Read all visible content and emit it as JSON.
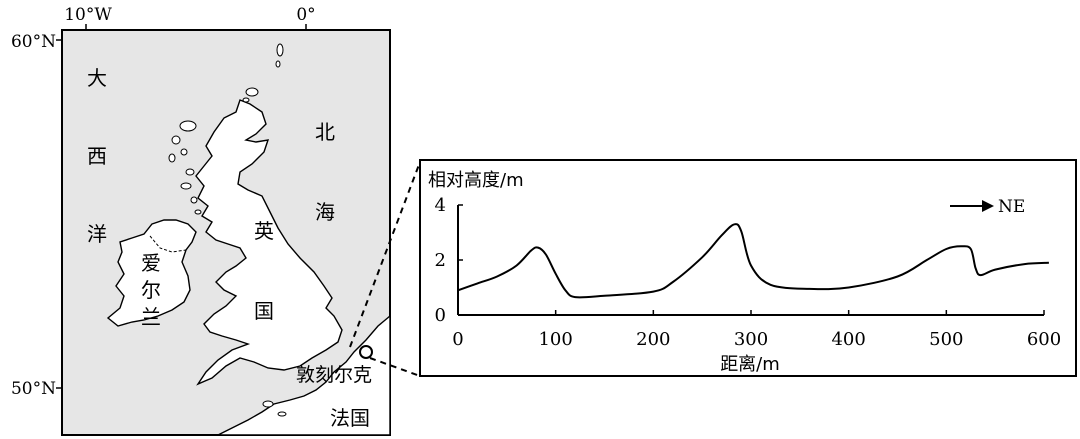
{
  "map": {
    "lon_labels": [
      "10°W",
      "0°"
    ],
    "lat_labels": [
      "60°N",
      "50°N"
    ],
    "sea_labels": {
      "atlantic": [
        "大",
        "西",
        "洋"
      ],
      "north_sea": [
        "北",
        "海"
      ]
    },
    "country_labels": {
      "uk": [
        "英",
        "国"
      ],
      "ireland": [
        "爱",
        "尔",
        "兰"
      ],
      "france": "法国"
    },
    "place_label": "敦刻尔克",
    "colors": {
      "sea": "#e6e6e6",
      "land": "#ffffff",
      "outline": "#000000"
    }
  },
  "chart_data": {
    "type": "line",
    "ylabel": "相对高度/m",
    "xlabel": "距离/m",
    "direction_label": "NE",
    "xlim": [
      0,
      600
    ],
    "ylim": [
      0,
      4
    ],
    "x_ticks": [
      "0",
      "100",
      "200",
      "300",
      "400",
      "500",
      "600"
    ],
    "y_ticks": [
      "0",
      "2",
      "4"
    ],
    "series": [
      {
        "x": [
          0,
          20,
          40,
          60,
          75,
          82,
          90,
          100,
          110,
          120,
          150,
          200,
          220,
          250,
          270,
          283,
          290,
          300,
          320,
          360,
          400,
          450,
          480,
          500,
          515,
          525,
          530,
          535,
          550,
          580,
          605
        ],
        "y": [
          0.9,
          1.15,
          1.4,
          1.8,
          2.35,
          2.45,
          2.2,
          1.5,
          0.9,
          0.65,
          0.7,
          0.85,
          1.2,
          2.1,
          2.9,
          3.3,
          3.05,
          1.8,
          1.1,
          0.95,
          1.0,
          1.4,
          2.0,
          2.4,
          2.5,
          2.4,
          1.7,
          1.45,
          1.65,
          1.85,
          1.9
        ]
      }
    ]
  }
}
